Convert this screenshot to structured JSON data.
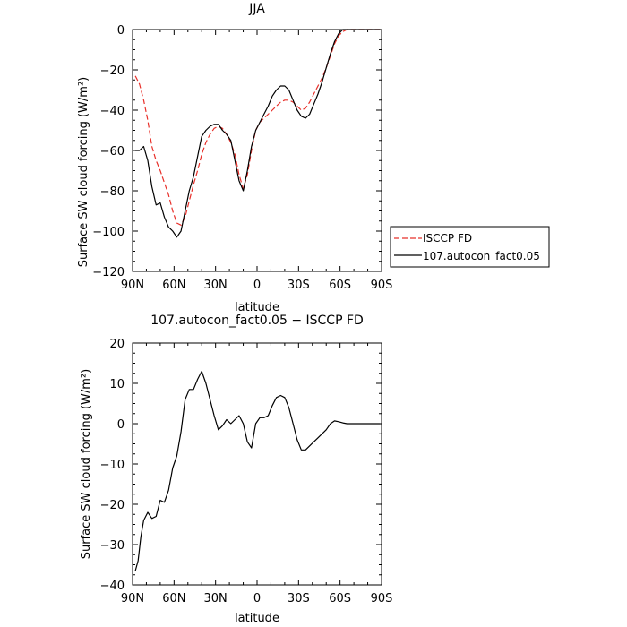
{
  "chart_data": [
    {
      "type": "line",
      "title": "JJA",
      "xlabel": "latitude",
      "ylabel": "Surface SW cloud forcing (W/m²)",
      "xlim": [
        90,
        -90
      ],
      "ylim": [
        -120,
        0
      ],
      "xticks": [
        90,
        60,
        30,
        0,
        -30,
        -60,
        -90
      ],
      "xtick_labels": [
        "90N",
        "60N",
        "30N",
        "0",
        "30S",
        "60S",
        "90S"
      ],
      "yticks": [
        -120,
        -100,
        -80,
        -60,
        -40,
        -20,
        0
      ],
      "ytick_labels": [
        "−120",
        "−100",
        "−80",
        "−60",
        "−40",
        "−20",
        "0"
      ],
      "legend_position": "right",
      "series": [
        {
          "name": "ISCCP FD",
          "color": "#e8302a",
          "dash": "dashed",
          "x": [
            88,
            85,
            82,
            79,
            76,
            73,
            70,
            67,
            64,
            61,
            58,
            55,
            52,
            49,
            46,
            43,
            40,
            37,
            34,
            31,
            28,
            25,
            22,
            19,
            16,
            13,
            10,
            7,
            4,
            1,
            -2,
            -5,
            -8,
            -11,
            -14,
            -17,
            -20,
            -23,
            -26,
            -29,
            -32,
            -35,
            -38,
            -41,
            -44,
            -47,
            -50,
            -53,
            -56,
            -59,
            -62,
            -65,
            -68,
            -71,
            -74,
            -77,
            -80,
            -83,
            -86,
            -89
          ],
          "y": [
            -23,
            -27,
            -35,
            -45,
            -58,
            -65,
            -70,
            -76,
            -82,
            -90,
            -96,
            -97,
            -93,
            -85,
            -77,
            -70,
            -62,
            -56,
            -52,
            -49,
            -48,
            -49,
            -52,
            -56,
            -62,
            -72,
            -79,
            -72,
            -60,
            -50,
            -46,
            -44,
            -42,
            -40,
            -38,
            -36,
            -35,
            -35,
            -36,
            -38,
            -40,
            -39,
            -36,
            -32,
            -28,
            -24,
            -19,
            -13,
            -7,
            -3,
            -1,
            0,
            0,
            0,
            0,
            0,
            0,
            0,
            0,
            0
          ]
        },
        {
          "name": "107.autocon_fact0.05",
          "color": "#000000",
          "dash": "solid",
          "x": [
            88,
            85,
            82,
            79,
            76,
            73,
            70,
            67,
            64,
            61,
            58,
            55,
            52,
            49,
            46,
            43,
            40,
            37,
            34,
            31,
            28,
            25,
            22,
            19,
            16,
            13,
            10,
            7,
            4,
            1,
            -2,
            -5,
            -8,
            -11,
            -14,
            -17,
            -20,
            -23,
            -26,
            -29,
            -32,
            -35,
            -38,
            -41,
            -44,
            -47,
            -50,
            -53,
            -56,
            -59,
            -62,
            -65,
            -68,
            -71,
            -74,
            -77,
            -80,
            -83,
            -86,
            -89
          ],
          "y": [
            -60,
            -60,
            -58,
            -65,
            -78,
            -87,
            -86,
            -93,
            -98,
            -100,
            -103,
            -100,
            -90,
            -80,
            -73,
            -63,
            -53,
            -50,
            -48,
            -47,
            -47,
            -50,
            -52,
            -55,
            -65,
            -75,
            -80,
            -70,
            -58,
            -50,
            -46,
            -42,
            -38,
            -33,
            -30,
            -28,
            -28,
            -30,
            -35,
            -40,
            -43,
            -44,
            -42,
            -37,
            -32,
            -26,
            -19,
            -12,
            -6,
            -2,
            0,
            0,
            0,
            0,
            0,
            0,
            0,
            0,
            0,
            0
          ]
        }
      ]
    },
    {
      "type": "line",
      "title": "107.autocon_fact0.05 − ISCCP FD",
      "xlabel": "latitude",
      "ylabel": "Surface SW cloud forcing (W/m²)",
      "xlim": [
        90,
        -90
      ],
      "ylim": [
        -40,
        20
      ],
      "xticks": [
        90,
        60,
        30,
        0,
        -30,
        -60,
        -90
      ],
      "xtick_labels": [
        "90N",
        "60N",
        "30N",
        "0",
        "30S",
        "60S",
        "90S"
      ],
      "yticks": [
        -40,
        -30,
        -20,
        -10,
        0,
        10,
        20
      ],
      "ytick_labels": [
        "−40",
        "−30",
        "−20",
        "−10",
        "0",
        "10",
        "20"
      ],
      "series": [
        {
          "color": "#000000",
          "dash": "solid",
          "x": [
            88,
            86,
            84,
            82,
            79,
            76,
            73,
            70,
            67,
            64,
            61,
            58,
            55,
            52,
            49,
            46,
            43,
            40,
            37,
            34,
            31,
            28,
            25,
            22,
            19,
            16,
            13,
            10,
            7,
            4,
            1,
            -2,
            -5,
            -8,
            -11,
            -14,
            -17,
            -20,
            -23,
            -26,
            -29,
            -32,
            -35,
            -38,
            -41,
            -44,
            -47,
            -50,
            -53,
            -56,
            -59,
            -62,
            -65,
            -68,
            -71,
            -74,
            -77,
            -80,
            -83,
            -86,
            -89
          ],
          "y": [
            -36.5,
            -34,
            -28,
            -24,
            -22,
            -23.5,
            -23,
            -19,
            -19.5,
            -16.5,
            -11,
            -8,
            -2,
            6,
            8.5,
            8.5,
            11,
            13,
            10,
            6,
            2,
            -1.5,
            -0.5,
            1,
            0,
            1,
            2,
            0,
            -4.5,
            -6,
            0,
            1.5,
            1.5,
            2,
            4.5,
            6.5,
            7,
            6.5,
            4,
            0,
            -4,
            -6.5,
            -6.5,
            -5.5,
            -4.5,
            -3.5,
            -2.5,
            -1.5,
            0,
            0.7,
            0.5,
            0.2,
            0,
            0,
            0,
            0,
            0,
            0,
            0,
            0,
            0
          ]
        }
      ]
    }
  ]
}
